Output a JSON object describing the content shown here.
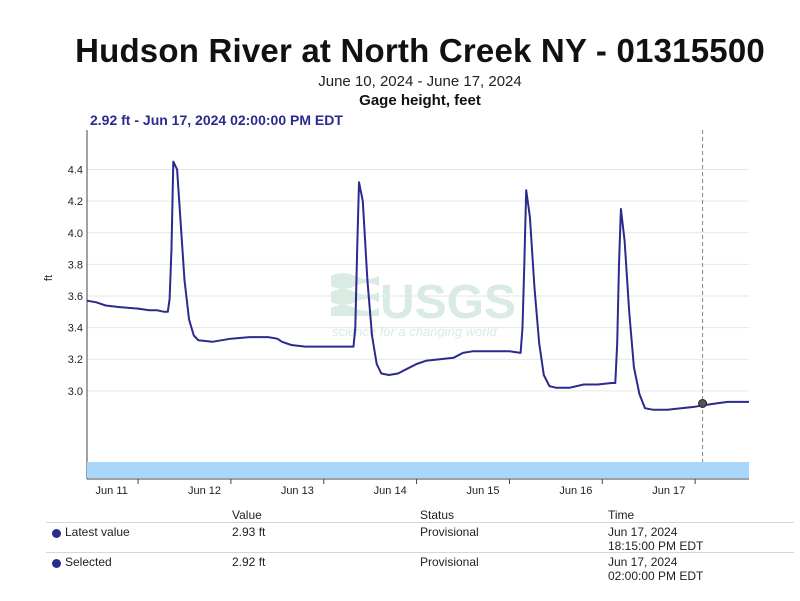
{
  "header": {
    "title": "Hudson River at North Creek NY - 01315500",
    "date_range": "June 10, 2024 - June 17, 2024",
    "parameter": "Gage height, feet",
    "selected_readout": "2.92 ft - Jun 17, 2024 02:00:00 PM EDT"
  },
  "watermark": {
    "logo": "USGS",
    "tagline": "science for a changing world"
  },
  "chart_data": {
    "type": "line",
    "title": "Hudson River at North Creek NY - 01315500",
    "subtitle": "June 10, 2024 - June 17, 2024",
    "ylabel": "ft",
    "xlabel": "",
    "x_unit": "days since Jun 11, 2024 00:00 EDT",
    "x_ticks": [
      {
        "x": 0,
        "label": "Jun 11"
      },
      {
        "x": 1,
        "label": "Jun 12"
      },
      {
        "x": 2,
        "label": "Jun 13"
      },
      {
        "x": 3,
        "label": "Jun 14"
      },
      {
        "x": 4,
        "label": "Jun 15"
      },
      {
        "x": 5,
        "label": "Jun 16"
      },
      {
        "x": 6,
        "label": "Jun 17"
      }
    ],
    "y_ticks": [
      3.0,
      3.2,
      3.4,
      3.6,
      3.8,
      4.0,
      4.2,
      4.4
    ],
    "ylim": [
      2.55,
      4.65
    ],
    "xlim": [
      -0.05,
      7.08
    ],
    "grid": "horizontal",
    "series": [
      {
        "name": "Gage height",
        "color": "#2b2a8e",
        "points": [
          [
            -0.05,
            3.57
          ],
          [
            0.05,
            3.56
          ],
          [
            0.15,
            3.54
          ],
          [
            0.3,
            3.53
          ],
          [
            0.5,
            3.52
          ],
          [
            0.62,
            3.51
          ],
          [
            0.7,
            3.51
          ],
          [
            0.78,
            3.5
          ],
          [
            0.82,
            3.5
          ],
          [
            0.84,
            3.58
          ],
          [
            0.86,
            3.9
          ],
          [
            0.88,
            4.45
          ],
          [
            0.92,
            4.4
          ],
          [
            0.96,
            4.05
          ],
          [
            1.0,
            3.7
          ],
          [
            1.05,
            3.45
          ],
          [
            1.1,
            3.35
          ],
          [
            1.15,
            3.32
          ],
          [
            1.3,
            3.31
          ],
          [
            1.5,
            3.33
          ],
          [
            1.7,
            3.34
          ],
          [
            1.9,
            3.34
          ],
          [
            2.0,
            3.33
          ],
          [
            2.05,
            3.31
          ],
          [
            2.15,
            3.29
          ],
          [
            2.3,
            3.28
          ],
          [
            2.5,
            3.28
          ],
          [
            2.7,
            3.28
          ],
          [
            2.82,
            3.28
          ],
          [
            2.84,
            3.4
          ],
          [
            2.86,
            3.9
          ],
          [
            2.88,
            4.32
          ],
          [
            2.92,
            4.2
          ],
          [
            2.97,
            3.7
          ],
          [
            3.02,
            3.35
          ],
          [
            3.07,
            3.17
          ],
          [
            3.12,
            3.11
          ],
          [
            3.2,
            3.1
          ],
          [
            3.3,
            3.11
          ],
          [
            3.4,
            3.14
          ],
          [
            3.5,
            3.17
          ],
          [
            3.6,
            3.19
          ],
          [
            3.75,
            3.2
          ],
          [
            3.9,
            3.21
          ],
          [
            4.0,
            3.24
          ],
          [
            4.1,
            3.25
          ],
          [
            4.3,
            3.25
          ],
          [
            4.5,
            3.25
          ],
          [
            4.62,
            3.24
          ],
          [
            4.64,
            3.4
          ],
          [
            4.66,
            3.8
          ],
          [
            4.68,
            4.27
          ],
          [
            4.72,
            4.1
          ],
          [
            4.77,
            3.65
          ],
          [
            4.82,
            3.3
          ],
          [
            4.87,
            3.1
          ],
          [
            4.93,
            3.03
          ],
          [
            5.0,
            3.02
          ],
          [
            5.15,
            3.02
          ],
          [
            5.3,
            3.04
          ],
          [
            5.45,
            3.04
          ],
          [
            5.6,
            3.05
          ],
          [
            5.64,
            3.05
          ],
          [
            5.66,
            3.3
          ],
          [
            5.68,
            3.8
          ],
          [
            5.7,
            4.15
          ],
          [
            5.74,
            3.95
          ],
          [
            5.79,
            3.5
          ],
          [
            5.84,
            3.15
          ],
          [
            5.9,
            2.98
          ],
          [
            5.96,
            2.89
          ],
          [
            6.05,
            2.88
          ],
          [
            6.2,
            2.88
          ],
          [
            6.35,
            2.89
          ],
          [
            6.5,
            2.9
          ],
          [
            6.6,
            2.91
          ],
          [
            6.72,
            2.92
          ],
          [
            6.85,
            2.93
          ],
          [
            7.0,
            2.93
          ],
          [
            7.08,
            2.93
          ]
        ]
      }
    ],
    "selected_point": {
      "x": 6.58,
      "y": 2.92,
      "label": "2.92 ft - Jun 17, 2024 02:00:00 PM EDT"
    },
    "cursor_line_x": 6.58,
    "legend": "none"
  },
  "table": {
    "headers": [
      "Value",
      "Status",
      "Time"
    ],
    "rows": [
      {
        "label": "Latest value",
        "value": "2.93 ft",
        "status": "Provisional",
        "time_date": "Jun 17, 2024",
        "time_clock": "18:15:00 PM EDT"
      },
      {
        "label": "Selected",
        "value": "2.92 ft",
        "status": "Provisional",
        "time_date": "Jun 17, 2024",
        "time_clock": "02:00:00 PM EDT"
      }
    ]
  }
}
